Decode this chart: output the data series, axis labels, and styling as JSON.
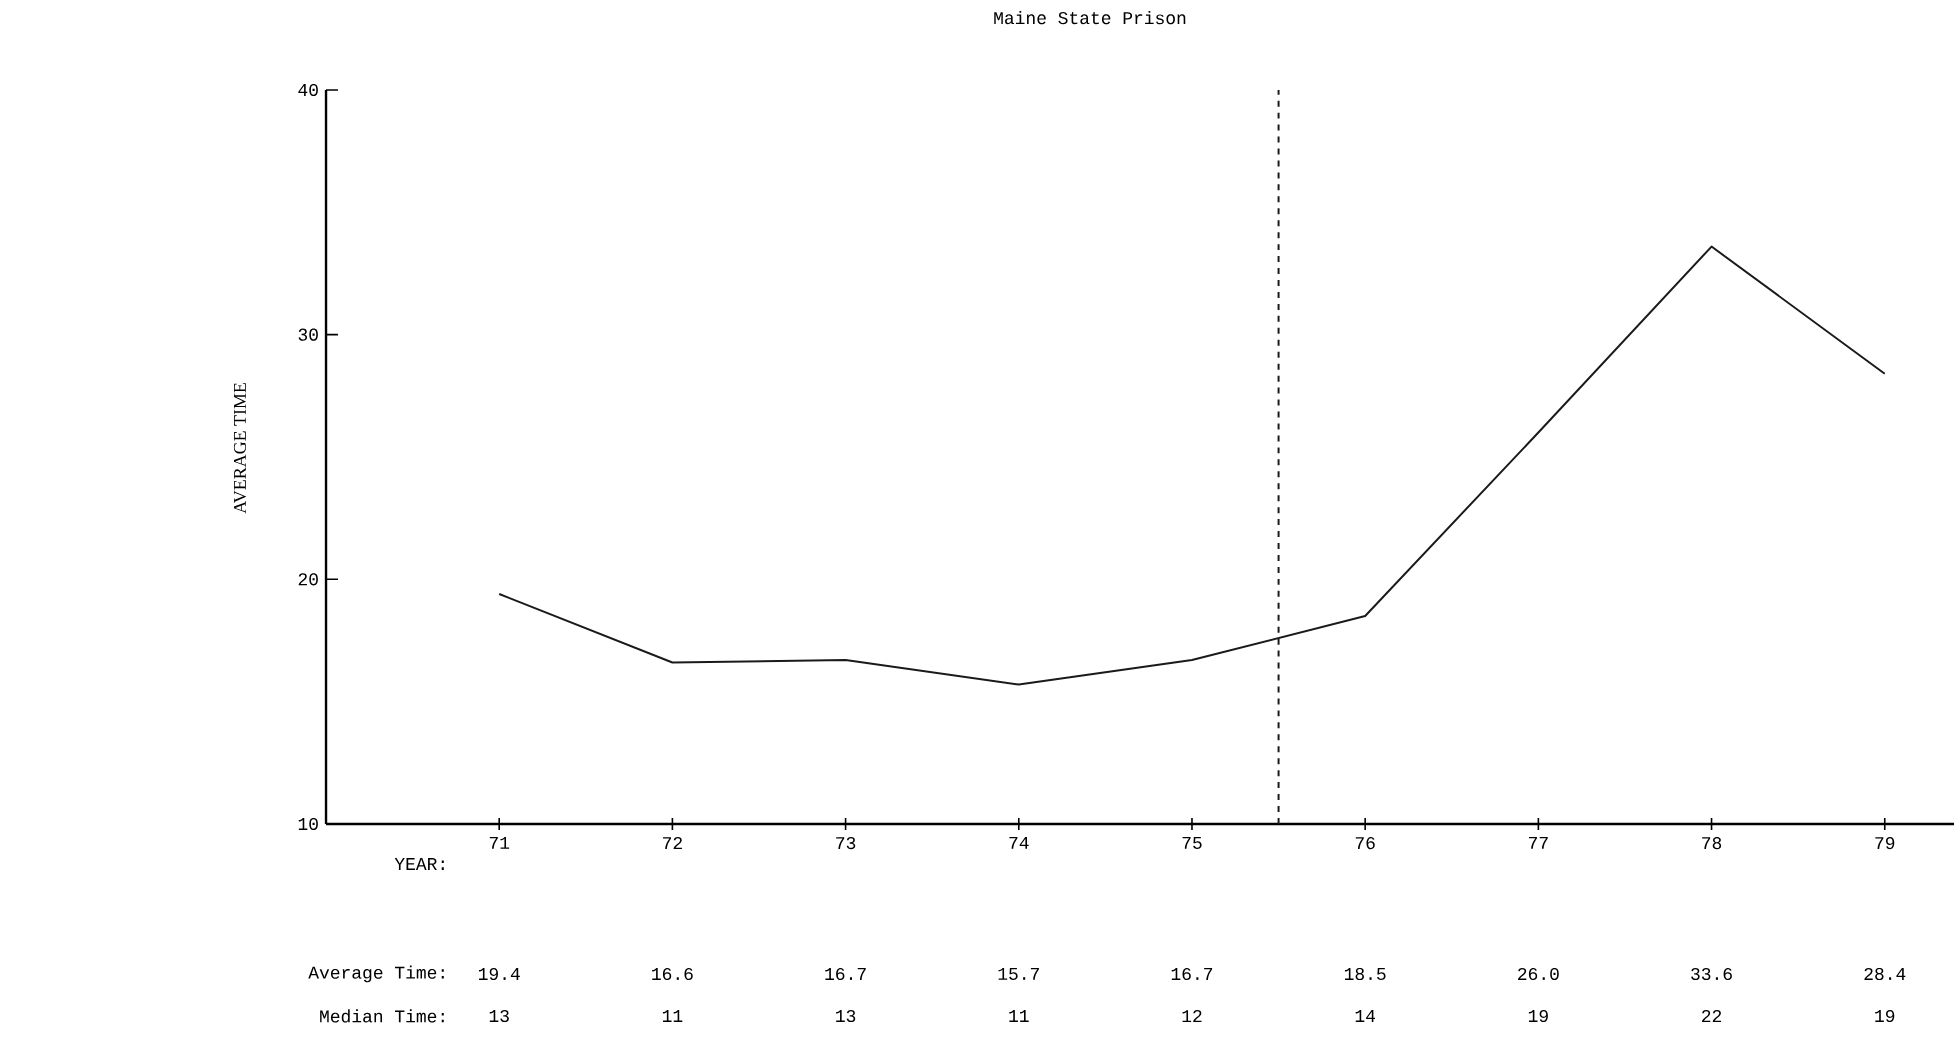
{
  "chart_data": {
    "type": "line",
    "title": "Maine State Prison",
    "ylabel": "AVERAGE TIME",
    "x": [
      71,
      72,
      73,
      74,
      75,
      76,
      77,
      78,
      79
    ],
    "series": [
      {
        "color": "#1a1a1a",
        "values": [
          19.4,
          16.6,
          16.7,
          15.7,
          16.7,
          18.5,
          26.0,
          33.6,
          28.4
        ]
      }
    ],
    "xlim": [
      70,
      79.4
    ],
    "ylim": [
      10,
      40
    ],
    "xticks": [
      71,
      72,
      73,
      74,
      75,
      76,
      77,
      78,
      79
    ],
    "yticks": [
      10,
      20,
      30,
      40
    ],
    "grid": false,
    "marker": "none",
    "line_style": "solid",
    "ref_lines": [
      {
        "axis": "x",
        "value": 75.5,
        "line_style": "dashed",
        "color": "#1a1a1a"
      }
    ],
    "annotations": [
      "YEAR:",
      "Average Time:",
      "19.4",
      "16.6",
      "16.7",
      "15.7",
      "16.7",
      "18.5",
      "26.0",
      "33.6",
      "28.4",
      "Median Time:",
      "13",
      "11",
      "13",
      "11",
      "12",
      "14",
      "19",
      "22",
      "19"
    ]
  }
}
